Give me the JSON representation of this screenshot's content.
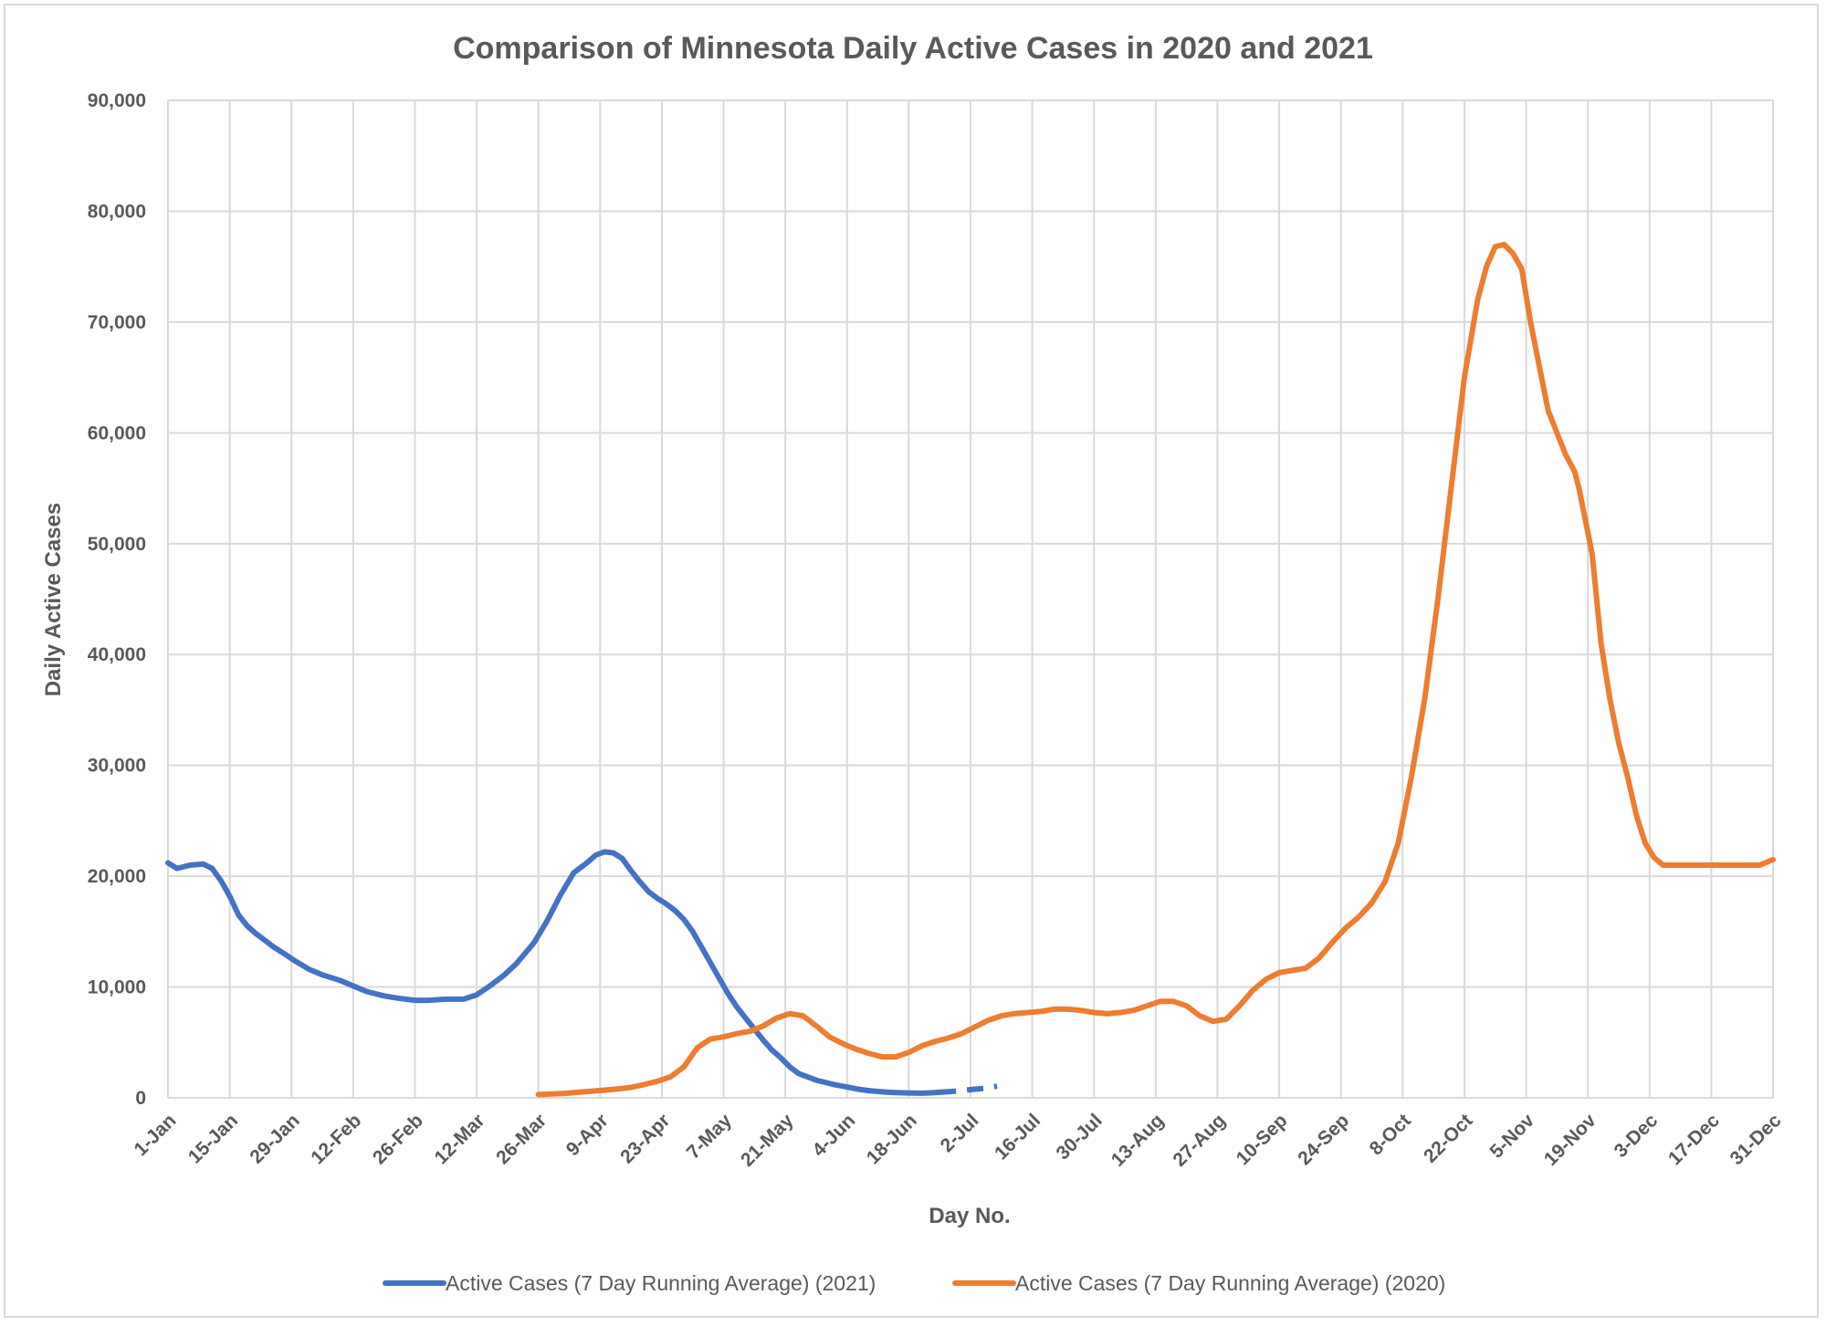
{
  "chart_data": {
    "type": "line",
    "title": "Comparison of Minnesota Daily Active Cases in 2020 and 2021",
    "xlabel": "Day No.",
    "ylabel": "Daily Active Cases",
    "ylim": [
      0,
      90000
    ],
    "yticks": [
      0,
      10000,
      20000,
      30000,
      40000,
      50000,
      60000,
      70000,
      80000,
      90000
    ],
    "ytick_labels": [
      "0",
      "10,000",
      "20,000",
      "30,000",
      "40,000",
      "50,000",
      "60,000",
      "70,000",
      "80,000",
      "90,000"
    ],
    "x_unit": "day of year",
    "xlim": [
      1,
      365
    ],
    "xticks": [
      1,
      15,
      29,
      43,
      57,
      71,
      85,
      99,
      113,
      127,
      141,
      155,
      169,
      183,
      197,
      211,
      225,
      239,
      253,
      267,
      281,
      295,
      309,
      323,
      337,
      351,
      365
    ],
    "xtick_labels": [
      "1-Jan",
      "15-Jan",
      "29-Jan",
      "12-Feb",
      "26-Feb",
      "12-Mar",
      "26-Mar",
      "9-Apr",
      "23-Apr",
      "7-May",
      "21-May",
      "4-Jun",
      "18-Jun",
      "2-Jul",
      "16-Jul",
      "30-Jul",
      "13-Aug",
      "27-Aug",
      "10-Sep",
      "24-Sep",
      "8-Oct",
      "22-Oct",
      "5-Nov",
      "19-Nov",
      "3-Dec",
      "17-Dec",
      "31-Dec"
    ],
    "grid": true,
    "legend_position": "bottom",
    "series": [
      {
        "name": "Active Cases (7 Day Running Average) (2021)",
        "color": "#4472c4",
        "x": [
          1,
          3,
          6,
          9,
          11,
          13,
          15,
          17,
          19,
          21,
          23,
          25,
          27,
          30,
          33,
          36,
          40,
          43,
          46,
          50,
          53,
          57,
          60,
          64,
          68,
          71,
          74,
          77,
          80,
          84,
          87,
          90,
          93,
          96,
          98,
          100,
          102,
          104,
          106,
          108,
          110,
          112,
          114,
          116,
          118,
          120,
          122,
          124,
          126,
          128,
          130,
          132,
          134,
          136,
          138,
          140,
          142,
          144,
          146,
          148,
          150,
          152,
          154,
          156,
          158,
          160,
          162,
          164,
          166,
          168,
          170,
          172,
          174,
          176,
          178,
          180,
          182,
          184,
          186,
          189
        ],
        "y": [
          21200,
          20700,
          21000,
          21100,
          20700,
          19600,
          18200,
          16500,
          15500,
          14800,
          14200,
          13600,
          13100,
          12300,
          11600,
          11100,
          10600,
          10100,
          9600,
          9200,
          9000,
          8800,
          8800,
          8900,
          8900,
          9300,
          10100,
          11000,
          12100,
          14000,
          16000,
          18300,
          20300,
          21200,
          21900,
          22200,
          22100,
          21600,
          20500,
          19500,
          18600,
          18000,
          17500,
          16900,
          16100,
          15000,
          13600,
          12200,
          10800,
          9400,
          8200,
          7200,
          6200,
          5200,
          4300,
          3600,
          2800,
          2200,
          1900,
          1600,
          1400,
          1200,
          1050,
          900,
          750,
          650,
          580,
          520,
          480,
          450,
          430,
          420,
          450,
          500,
          550,
          620,
          700,
          780,
          850,
          1050
        ],
        "dashed_from_x": 178
      },
      {
        "name": "Active Cases (7 Day Running Average) (2020)",
        "color": "#ed7d31",
        "x": [
          85,
          88,
          91,
          94,
          97,
          100,
          103,
          106,
          109,
          112,
          115,
          118,
          121,
          124,
          127,
          130,
          133,
          136,
          139,
          142,
          145,
          148,
          151,
          154,
          157,
          160,
          163,
          166,
          169,
          172,
          175,
          178,
          181,
          184,
          187,
          190,
          193,
          196,
          199,
          202,
          205,
          208,
          211,
          214,
          217,
          220,
          223,
          226,
          229,
          232,
          235,
          238,
          241,
          244,
          247,
          250,
          253,
          256,
          259,
          262,
          265,
          268,
          271,
          274,
          277,
          280,
          283,
          286,
          289,
          292,
          295,
          298,
          300,
          302,
          304,
          306,
          308,
          310,
          312,
          314,
          316,
          318,
          320,
          321,
          322,
          323,
          324,
          325,
          326,
          328,
          330,
          332,
          334,
          336,
          338,
          340,
          342,
          344,
          346,
          348,
          350,
          352,
          354,
          356,
          358,
          360,
          362,
          365
        ],
        "y": [
          300,
          350,
          400,
          500,
          600,
          700,
          800,
          950,
          1200,
          1500,
          1900,
          2800,
          4500,
          5300,
          5500,
          5800,
          6000,
          6500,
          7200,
          7600,
          7400,
          6500,
          5500,
          4900,
          4400,
          4000,
          3700,
          3700,
          4100,
          4700,
          5100,
          5400,
          5800,
          6400,
          7000,
          7400,
          7600,
          7700,
          7800,
          8000,
          8000,
          7900,
          7700,
          7600,
          7700,
          7900,
          8300,
          8700,
          8700,
          8300,
          7400,
          6900,
          7100,
          8300,
          9700,
          10700,
          11300,
          11500,
          11700,
          12600,
          14000,
          15300,
          16300,
          17600,
          19500,
          23000,
          29000,
          36000,
          45000,
          55000,
          65000,
          72000,
          75000,
          76800,
          77000,
          76200,
          74800,
          70000,
          66000,
          62000,
          60000,
          58000,
          56500,
          55000,
          53000,
          51000,
          49000,
          45000,
          41000,
          36000,
          32000,
          29000,
          25500,
          23000,
          21700,
          21000,
          21000,
          21000,
          21000,
          21000,
          21000,
          21000,
          21000,
          21000,
          21000,
          21000,
          21000,
          21500
        ]
      }
    ]
  }
}
